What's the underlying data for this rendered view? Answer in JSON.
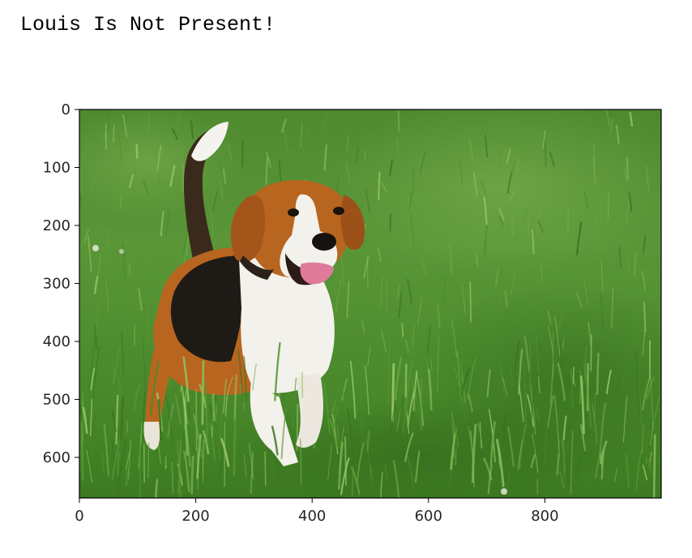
{
  "output": {
    "text": "Louis Is Not Present!"
  },
  "figure": {
    "kind": "image-display",
    "image_subject": "beagle running in green grass",
    "chart_data": {
      "type": "image",
      "title": "",
      "xlabel": "",
      "ylabel": "",
      "xlim": [
        0,
        1000
      ],
      "ylim": [
        670,
        0
      ],
      "x_ticks": [
        "0",
        "200",
        "400",
        "600",
        "800"
      ],
      "y_ticks": [
        "0",
        "100",
        "200",
        "300",
        "400",
        "500",
        "600"
      ],
      "x_tick_values": [
        0,
        200,
        400,
        600,
        800
      ],
      "y_tick_values": [
        0,
        100,
        200,
        300,
        400,
        500,
        600
      ],
      "grid": false
    },
    "colors": {
      "grass_dark": "#3f7a24",
      "grass_mid": "#5f9a3a",
      "grass_light": "#86b85a",
      "dog_brown": "#b8651f",
      "dog_black": "#1e1a16",
      "dog_white": "#f3f1ec",
      "tongue": "#e07a9a",
      "axis": "#000000"
    }
  }
}
